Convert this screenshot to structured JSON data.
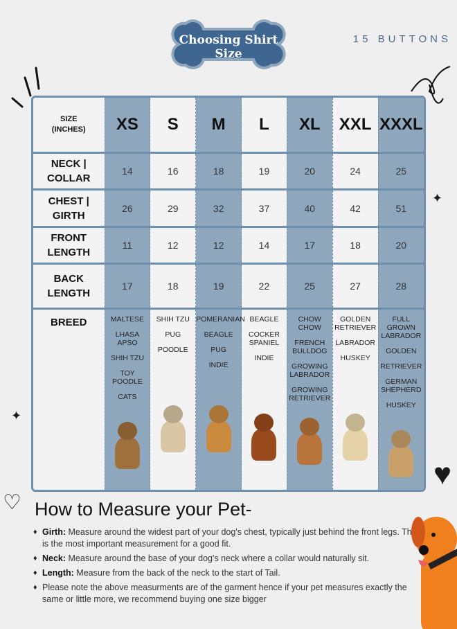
{
  "header": {
    "title": "Choosing Shirt Size",
    "brand": "15 BUTTONS"
  },
  "table": {
    "corner": [
      "SIZE",
      "(INCHES)"
    ],
    "sizes": [
      "XS",
      "S",
      "M",
      "L",
      "XL",
      "XXL",
      "XXXL"
    ],
    "rows": [
      {
        "label": [
          "NECK |",
          "COLLAR"
        ],
        "values": [
          "14",
          "16",
          "18",
          "19",
          "20",
          "24",
          "25"
        ]
      },
      {
        "label": [
          "CHEST |",
          "GIRTH"
        ],
        "values": [
          "26",
          "29",
          "32",
          "37",
          "40",
          "42",
          "51"
        ]
      },
      {
        "label": [
          "FRONT",
          "LENGTH"
        ],
        "values": [
          "11",
          "12",
          "12",
          "14",
          "17",
          "18",
          "20"
        ]
      },
      {
        "label": [
          "BACK",
          "LENGTH"
        ],
        "values": [
          "17",
          "18",
          "19",
          "22",
          "25",
          "27",
          "28"
        ]
      }
    ],
    "breed_label": "BREED",
    "breeds": [
      [
        "MALTESE",
        "LHASA APSO",
        "SHIH TZU",
        "TOY POODLE",
        "CATS"
      ],
      [
        "SHIH TZU",
        "PUG",
        "POODLE"
      ],
      [
        "POMERANIAN",
        "BEAGLE",
        "PUG",
        "INDIE"
      ],
      [
        "BEAGLE",
        "COCKER SPANIEL",
        "INDIE"
      ],
      [
        "CHOW CHOW",
        "FRENCH BULLDOG",
        "GROWING LABRADOR",
        "GROWING RETRIEVER"
      ],
      [
        "GOLDEN RETRIEVER",
        "LABRADOR",
        "HUSKEY"
      ],
      [
        "FULL GROWN LABRADOR",
        "GOLDEN",
        "RETRIEVER",
        "GERMAN SHEPHERD",
        "HUSKEY"
      ]
    ],
    "dog_colors": [
      "#a0703c",
      "#d9c6a4",
      "#c98a3e",
      "#9a4a1c",
      "#b8743a",
      "#e6d2a8",
      "#c9a06a"
    ],
    "colors": {
      "blue_column": "#8fa7bd",
      "border": "#6f8fae",
      "bone": "#3f6690"
    }
  },
  "measure": {
    "title": "How to Measure your Pet-",
    "items": [
      {
        "term": "Girth:",
        "text": " Measure around the widest part of your dog's chest, typically just behind the front legs. This is the most important measurement for a good fit."
      },
      {
        "term": "Neck:",
        "text": " Measure around the base of your dog's neck where a collar would naturally sit."
      },
      {
        "term": "Length:",
        "text": " Measure from the back of the neck to the start of Tail."
      },
      {
        "term": "",
        "text": "Please note the above measurments are of the garment hence if your pet measures exactly the same or little more, we recommend buying one size bigger"
      }
    ]
  }
}
